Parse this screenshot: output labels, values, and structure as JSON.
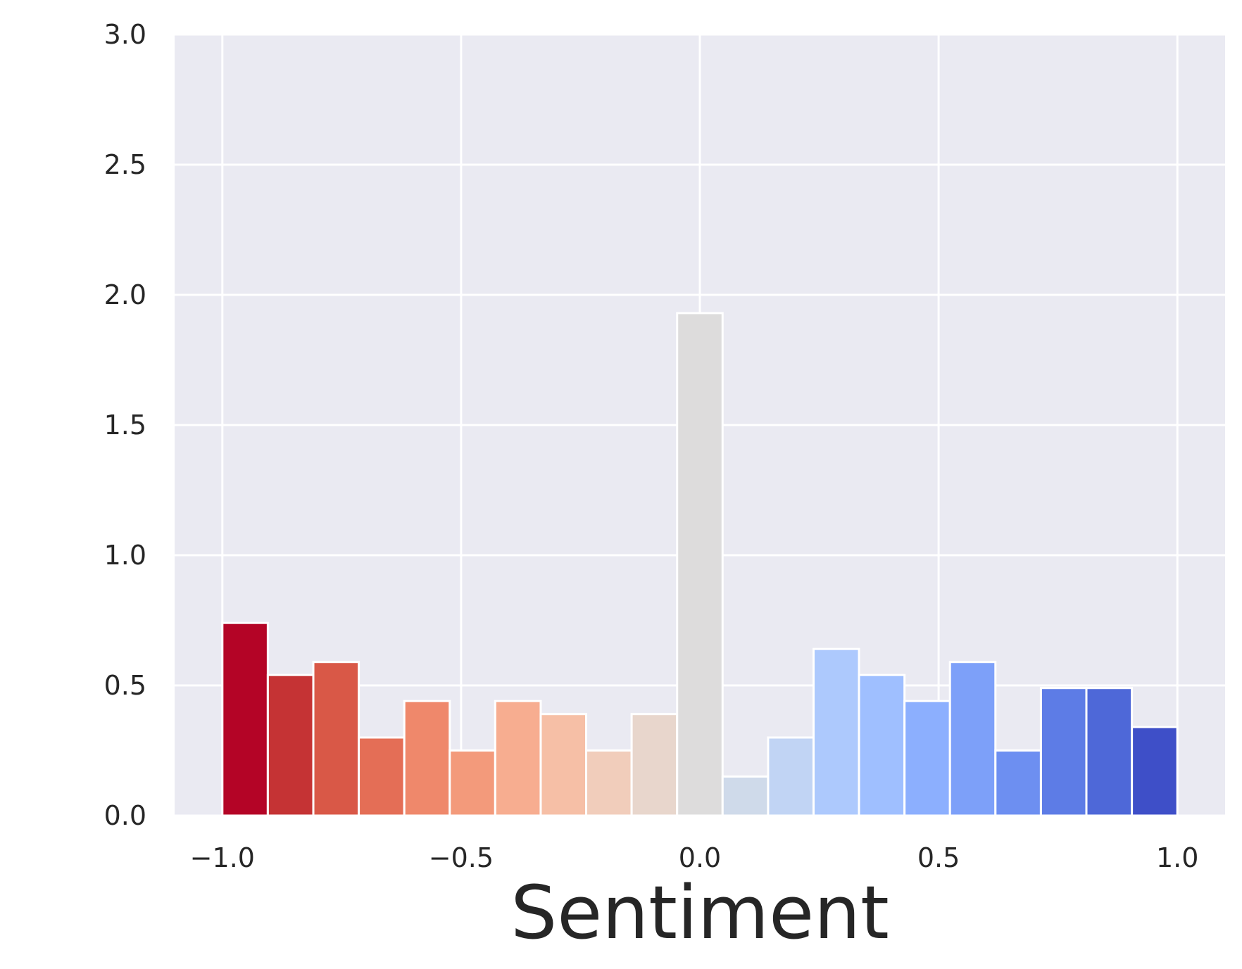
{
  "chart_data": {
    "type": "bar",
    "title": "",
    "xlabel": "Sentiment",
    "ylabel": "",
    "xlim": [
      -1.1,
      1.1
    ],
    "ylim": [
      0,
      3.0
    ],
    "xticks": [
      -1.0,
      -0.5,
      0.0,
      0.5,
      1.0
    ],
    "xtick_labels": [
      "−1.0",
      "−0.5",
      "0.0",
      "0.5",
      "1.0"
    ],
    "yticks": [
      0.0,
      0.5,
      1.0,
      1.5,
      2.0,
      2.5,
      3.0
    ],
    "ytick_labels": [
      "0.0",
      "0.5",
      "1.0",
      "1.5",
      "2.0",
      "2.5",
      "3.0"
    ],
    "grid": true,
    "background_color": "#eaeaf2",
    "bin_edges": [
      -1.0,
      -0.9048,
      -0.8095,
      -0.7143,
      -0.619,
      -0.5238,
      -0.4286,
      -0.3333,
      -0.2381,
      -0.1429,
      -0.0476,
      0.0476,
      0.1429,
      0.2381,
      0.3333,
      0.4286,
      0.5238,
      0.619,
      0.7143,
      0.8095,
      0.9048,
      1.0
    ],
    "values": [
      0.74,
      0.54,
      0.59,
      0.3,
      0.44,
      0.25,
      0.44,
      0.39,
      0.25,
      0.39,
      1.93,
      0.15,
      0.3,
      0.64,
      0.54,
      0.44,
      0.59,
      0.25,
      0.49,
      0.49,
      0.34
    ],
    "colors": [
      "#b40426",
      "#c53334",
      "#d95847",
      "#e46e56",
      "#ef886b",
      "#f39a7b",
      "#f7ad90",
      "#f6bfa6",
      "#f1cdbb",
      "#e8d6cc",
      "#dddcdc",
      "#cfdaea",
      "#c1d4f4",
      "#adc9fd",
      "#9fbfff",
      "#8caffe",
      "#7da0f9",
      "#6d8ff1",
      "#5d7ce6",
      "#4e68d8",
      "#3e4fc8"
    ]
  }
}
